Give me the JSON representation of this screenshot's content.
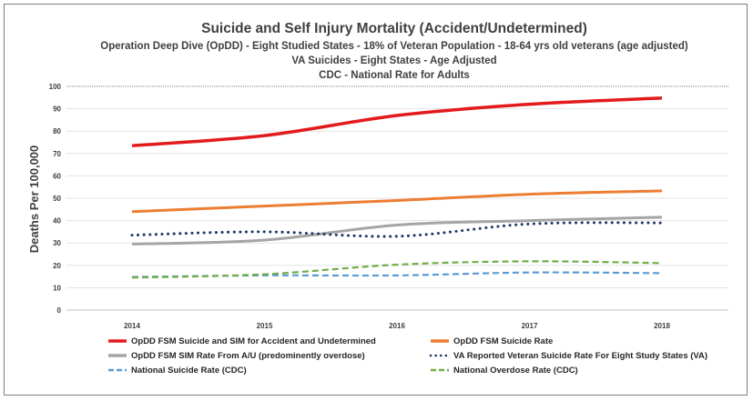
{
  "chart_data": {
    "type": "line",
    "title": "Suicide and Self Injury Mortality (Accident/Undetermined)",
    "subtitles": [
      "Operation Deep Dive (OpDD) - Eight Studied States - 18% of Veteran Population - 18-64 yrs old veterans (age adjusted)",
      "VA  Suicides - Eight States - Age Adjusted",
      "CDC - National Rate for Adults"
    ],
    "xlabel": "",
    "ylabel": "Deaths Per 100,000",
    "ylim": [
      0,
      100
    ],
    "yticks": [
      0,
      10,
      20,
      30,
      40,
      50,
      60,
      70,
      80,
      90,
      100
    ],
    "x": [
      "2014",
      "2015",
      "2016",
      "2017",
      "2018"
    ],
    "grid": true,
    "legend_position": "bottom",
    "series": [
      {
        "name": "OpDD FSM Suicide and SIM for Accident and Undetermined",
        "values": [
          73.5,
          78,
          87,
          92,
          94.8
        ],
        "color": "#e31a1c",
        "style": "solid",
        "width": 3.5
      },
      {
        "name": "OpDD FSM Suicide Rate",
        "values": [
          44,
          46.5,
          49,
          51.8,
          53.3
        ],
        "color": "#ed7d31",
        "style": "solid",
        "width": 3
      },
      {
        "name": "OpDD FSM SIM Rate From A/U (predominently overdose)",
        "values": [
          29.5,
          31.3,
          38,
          40,
          41.5
        ],
        "color": "#a5a5a5",
        "style": "solid",
        "width": 3
      },
      {
        "name": "VA Reported Veteran Suicide Rate For Eight Study States (VA)",
        "values": [
          33.5,
          35,
          33,
          38.5,
          39
        ],
        "color": "#1f3864",
        "style": "dot",
        "width": 3
      },
      {
        "name": "National Suicide Rate (CDC)",
        "values": [
          14.8,
          15.5,
          15.5,
          16.8,
          16.5
        ],
        "color": "#5b9bd5",
        "style": "dash",
        "width": 2.2
      },
      {
        "name": "National Overdose Rate (CDC)",
        "values": [
          14.5,
          16,
          20.3,
          21.8,
          21
        ],
        "color": "#70ad47",
        "style": "dash",
        "width": 2.2
      }
    ]
  }
}
